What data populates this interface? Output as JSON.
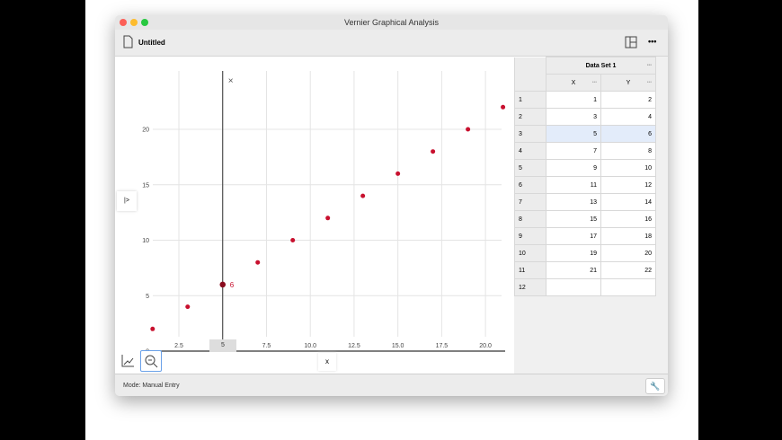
{
  "window": {
    "title": "Vernier Graphical Analysis",
    "document_title": "Untitled"
  },
  "toolbar": {
    "layout_icon": "layout-icon",
    "more_label": "•••"
  },
  "graph": {
    "cursor_x_label": "5",
    "cursor_y_label": "6",
    "x_axis_label": "x",
    "side_tab_label": "|>",
    "close_label": "×"
  },
  "chart_data": {
    "type": "scatter",
    "x": [
      1,
      3,
      5,
      7,
      9,
      11,
      13,
      15,
      17,
      19,
      21
    ],
    "y": [
      2,
      4,
      6,
      8,
      10,
      12,
      14,
      16,
      18,
      20,
      22
    ],
    "xlim": [
      1,
      21.2
    ],
    "ylim": [
      0,
      23
    ],
    "xticks": [
      "2.5",
      "5.0",
      "7.5",
      "10.0",
      "12.5",
      "15.0",
      "17.5",
      "20.0"
    ],
    "yticks": [
      "0",
      "5",
      "10",
      "15",
      "20"
    ],
    "xlabel": "x",
    "grid": true,
    "color": "#c8102e",
    "examine_x": 5
  },
  "table": {
    "dataset": "Data Set 1",
    "menu": "•••",
    "columns": [
      "X",
      "Y"
    ],
    "rows": [
      [
        "1",
        "2"
      ],
      [
        "3",
        "4"
      ],
      [
        "5",
        "6"
      ],
      [
        "7",
        "8"
      ],
      [
        "9",
        "10"
      ],
      [
        "11",
        "12"
      ],
      [
        "13",
        "14"
      ],
      [
        "15",
        "16"
      ],
      [
        "17",
        "18"
      ],
      [
        "19",
        "20"
      ],
      [
        "21",
        "22"
      ],
      [
        "",
        ""
      ]
    ],
    "selected_row": 3
  },
  "status": {
    "mode": "Mode: Manual Entry"
  }
}
